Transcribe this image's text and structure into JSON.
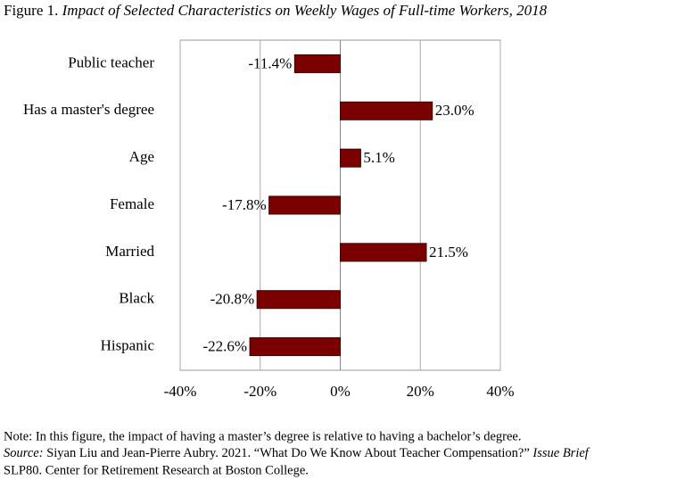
{
  "chart_data": {
    "type": "hbar",
    "figure_label": "Figure 1.",
    "title": "Impact of Selected Characteristics on Weekly Wages of Full-time Workers, 2018",
    "categories": [
      "Public teacher",
      "Has a master's degree",
      "Age",
      "Female",
      "Married",
      "Black",
      "Hispanic"
    ],
    "values": [
      -11.4,
      23.0,
      5.1,
      -17.8,
      21.5,
      -20.8,
      -22.6
    ],
    "value_labels": [
      "-11.4%",
      "23.0%",
      "5.1%",
      "-17.8%",
      "21.5%",
      "-20.8%",
      "-22.6%"
    ],
    "color": "#7b0000",
    "xlim": [
      -40,
      40
    ],
    "xticks": [
      {
        "value": -40,
        "label": "-40%"
      },
      {
        "value": -20,
        "label": "-20%"
      },
      {
        "value": 0,
        "label": "0%"
      },
      {
        "value": 20,
        "label": "20%"
      },
      {
        "value": 40,
        "label": "40%"
      }
    ],
    "grid": true,
    "note": "Note: In this figure, the impact of having a master’s degree is relative to having a bachelor’s degree.",
    "source": {
      "label": "Source:",
      "text": "Siyan Liu and Jean-Pierre Aubry. 2021. “What Do We Know About Teacher Compensation?”",
      "publication": "Issue Brief",
      "text2": "SLP80. Center for Retirement Research at Boston College."
    }
  }
}
